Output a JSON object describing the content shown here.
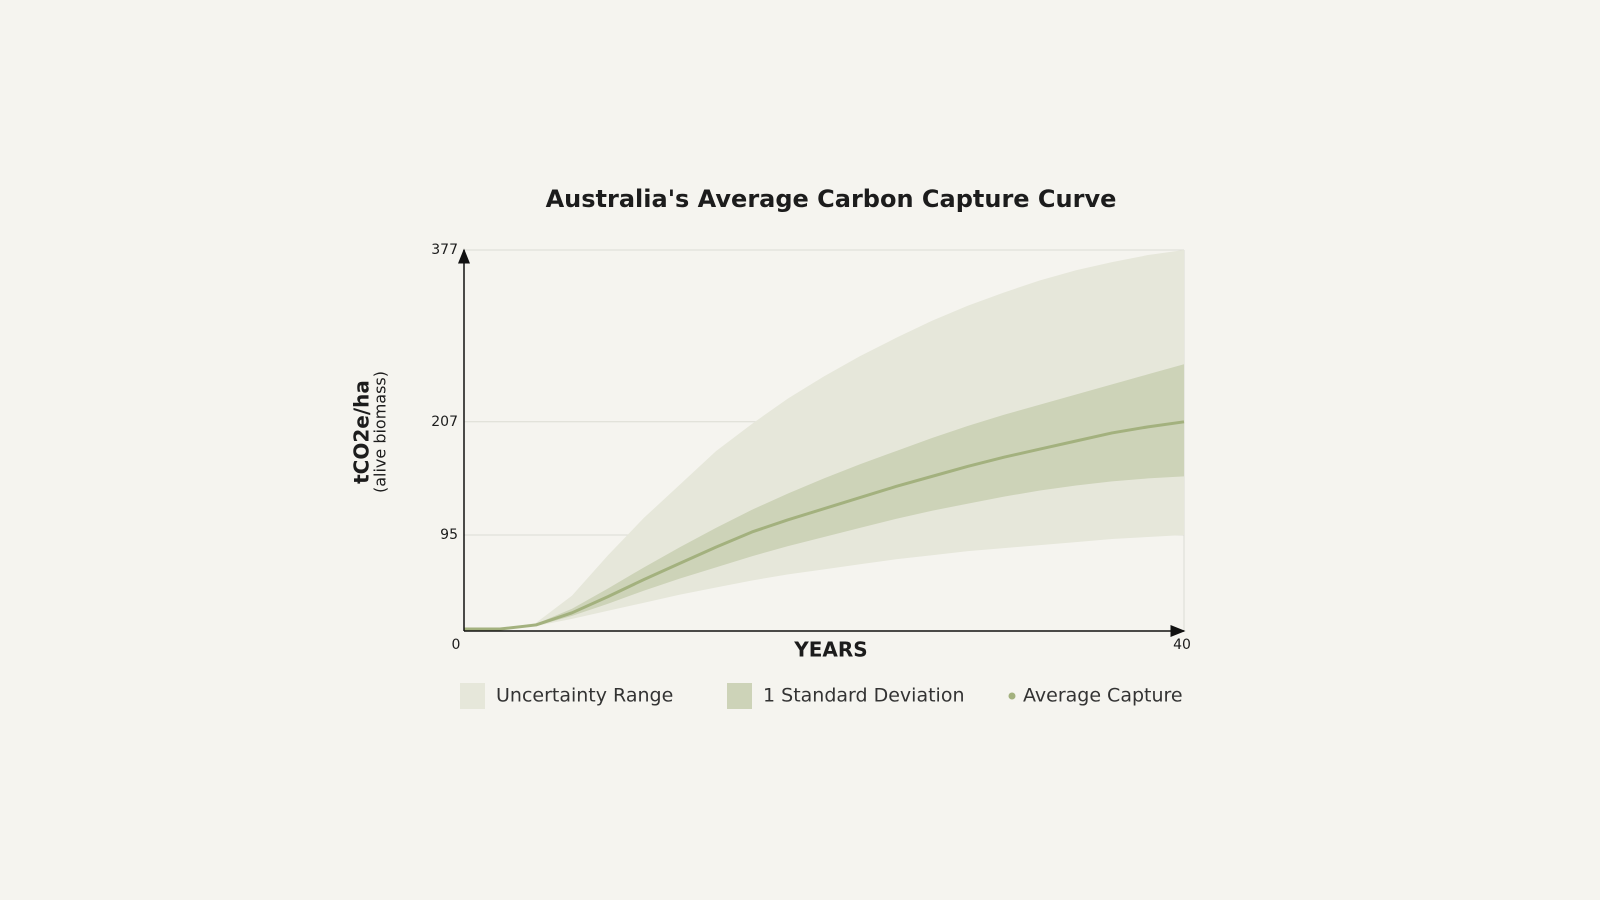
{
  "chart_data": {
    "type": "area",
    "title": "Australia's Average Carbon Capture Curve",
    "x_label": "YEARS",
    "y_label": "tCO2e/ha",
    "y_sublabel": "(alive biomass)",
    "x": [
      0,
      2,
      4,
      6,
      8,
      10,
      12,
      14,
      16,
      18,
      20,
      22,
      24,
      26,
      28,
      30,
      32,
      34,
      36,
      38,
      40
    ],
    "xlim": [
      0,
      40
    ],
    "xticks": [
      0,
      40
    ],
    "ylim": [
      0,
      377
    ],
    "yticks": [
      95,
      207,
      377
    ],
    "grid": true,
    "series": [
      {
        "name": "Uncertainty Range",
        "color": "#e6e7da",
        "upper": [
          2,
          2,
          8,
          35,
          75,
          112,
          145,
          178,
          205,
          230,
          252,
          272,
          290,
          307,
          322,
          335,
          347,
          357,
          365,
          372,
          377
        ],
        "lower": [
          2,
          2,
          5,
          12,
          20,
          28,
          36,
          43,
          50,
          56,
          61,
          66,
          71,
          75,
          79,
          82,
          85,
          88,
          91,
          93,
          95
        ]
      },
      {
        "name": "1 Standard Deviation",
        "color": "#cdd3b8",
        "upper": [
          2,
          2,
          7,
          22,
          42,
          63,
          83,
          102,
          120,
          136,
          151,
          165,
          178,
          191,
          203,
          214,
          224,
          234,
          244,
          254,
          264
        ],
        "lower": [
          2,
          2,
          5,
          15,
          27,
          40,
          52,
          63,
          74,
          84,
          93,
          102,
          111,
          119,
          126,
          133,
          139,
          144,
          148,
          151,
          153
        ]
      },
      {
        "name": "Average Capture",
        "color": "#a3b17e",
        "values": [
          2,
          2,
          6,
          18,
          34,
          51,
          67,
          83,
          98,
          110,
          121,
          132,
          143,
          153,
          163,
          172,
          180,
          188,
          196,
          202,
          207
        ]
      }
    ]
  }
}
